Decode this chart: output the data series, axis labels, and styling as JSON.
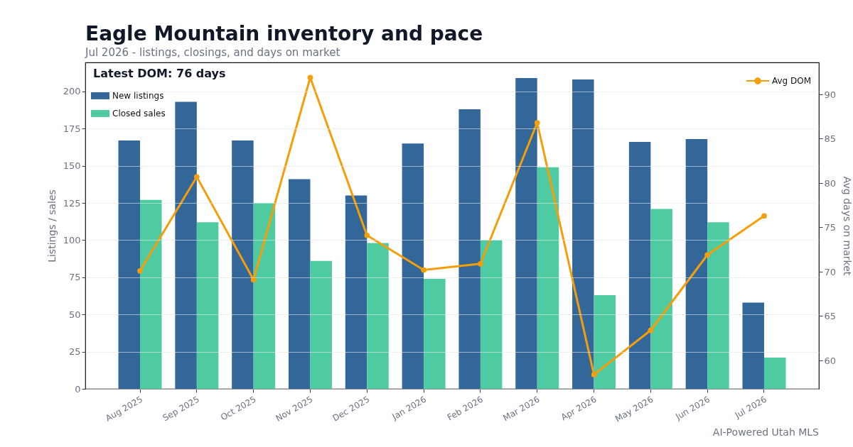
{
  "chart_data": {
    "type": "bar",
    "title": "Eagle Mountain inventory and pace",
    "subtitle": "Jul 2026 - listings, closings, and days on market",
    "ylabel": "Listings / sales",
    "y2label": "Avg days on market",
    "categories": [
      "Aug 2025",
      "Sep 2025",
      "Oct 2025",
      "Nov 2025",
      "Dec 2025",
      "Jan 2026",
      "Feb 2026",
      "Mar 2026",
      "Apr 2026",
      "May 2026",
      "Jun 2026",
      "Jul 2026"
    ],
    "series": [
      {
        "name": "New listings",
        "color": "#336699",
        "values": [
          167,
          193,
          167,
          141,
          130,
          165,
          188,
          209,
          208,
          166,
          168,
          58
        ]
      },
      {
        "name": "Closed sales",
        "color": "#4ecba0",
        "values": [
          127,
          112,
          125,
          86,
          98,
          74,
          100,
          149,
          63,
          121,
          112,
          21
        ]
      },
      {
        "name": "Avg DOM",
        "type": "line",
        "axis": "y2",
        "color": "#f59e0b",
        "values": [
          70.1,
          80.7,
          69.1,
          91.9,
          74.1,
          70.2,
          70.9,
          86.8,
          58.4,
          63.4,
          71.9,
          76.3
        ]
      }
    ],
    "ylim": [
      0,
      219.5
    ],
    "yticks": [
      0,
      25,
      50,
      75,
      100,
      125,
      150,
      175,
      200
    ],
    "y2lim": [
      56.8,
      93.6
    ],
    "y2ticks": [
      60,
      65,
      70,
      75,
      80,
      85,
      90
    ],
    "grid": "y",
    "legend": "top left",
    "marker": "circle",
    "line_style": "solid",
    "annotations": [
      "Latest DOM: 76 days",
      "AI-Powered Utah MLS"
    ]
  }
}
